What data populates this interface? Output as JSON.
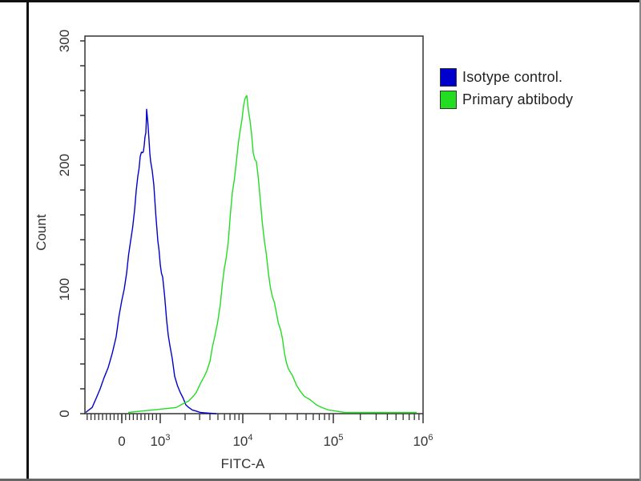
{
  "chart_data": {
    "type": "line",
    "title": "",
    "xlabel": "FITC-A",
    "ylabel": "Count",
    "xscale": "biexponential",
    "xlim": [
      -958,
      1000000
    ],
    "ylim": [
      0,
      300
    ],
    "yticks": [
      0,
      100,
      200,
      300
    ],
    "ytick_labels": [
      "0",
      "100",
      "200",
      "300"
    ],
    "xticks": [
      {
        "value": 0,
        "base": "0",
        "exp": ""
      },
      {
        "value": 1000,
        "base": "10",
        "exp": "3"
      },
      {
        "value": 10000,
        "base": "10",
        "exp": "4"
      },
      {
        "value": 100000,
        "base": "10",
        "exp": "5"
      },
      {
        "value": 1000000,
        "base": "10",
        "exp": "6"
      }
    ],
    "grid": false,
    "legend_position": "right-top",
    "series": [
      {
        "name": "Isotype control.",
        "color": "#0000cc",
        "x": [
          -938,
          -771,
          -563,
          -354,
          -146,
          0,
          125,
          229,
          333,
          417,
          479,
          542,
          583,
          625,
          646,
          708,
          750,
          833,
          938,
          1000,
          1069,
          1196,
          1308,
          1496,
          1750,
          2047,
          2445,
          3056,
          4787
        ],
        "y": [
          1,
          5,
          20,
          37,
          62,
          91,
          113,
          139,
          164,
          191,
          207,
          210,
          216,
          226,
          245,
          220,
          203,
          184,
          139,
          120,
          110,
          75,
          55,
          30,
          17,
          7,
          3,
          1,
          0
        ]
      },
      {
        "name": "Primary abtibody",
        "color": "#22dd22",
        "x": [
          167,
          792,
          1563,
          2188,
          2737,
          3420,
          3999,
          4571,
          5346,
          5980,
          6686,
          7478,
          8358,
          9348,
          10205,
          11072,
          12013,
          13035,
          14142,
          15664,
          17334,
          19194,
          21240,
          23550,
          26060,
          28840,
          31920,
          39170,
          47970,
          65160,
          88310,
          133400,
          303400,
          848600
        ],
        "y": [
          1,
          3,
          5,
          10,
          17,
          30,
          42,
          62,
          88,
          117,
          139,
          178,
          203,
          229,
          248,
          256,
          236,
          210,
          203,
          171,
          139,
          113,
          94,
          81,
          68,
          49,
          36,
          23,
          14,
          7,
          3,
          1,
          1,
          1
        ]
      }
    ]
  }
}
